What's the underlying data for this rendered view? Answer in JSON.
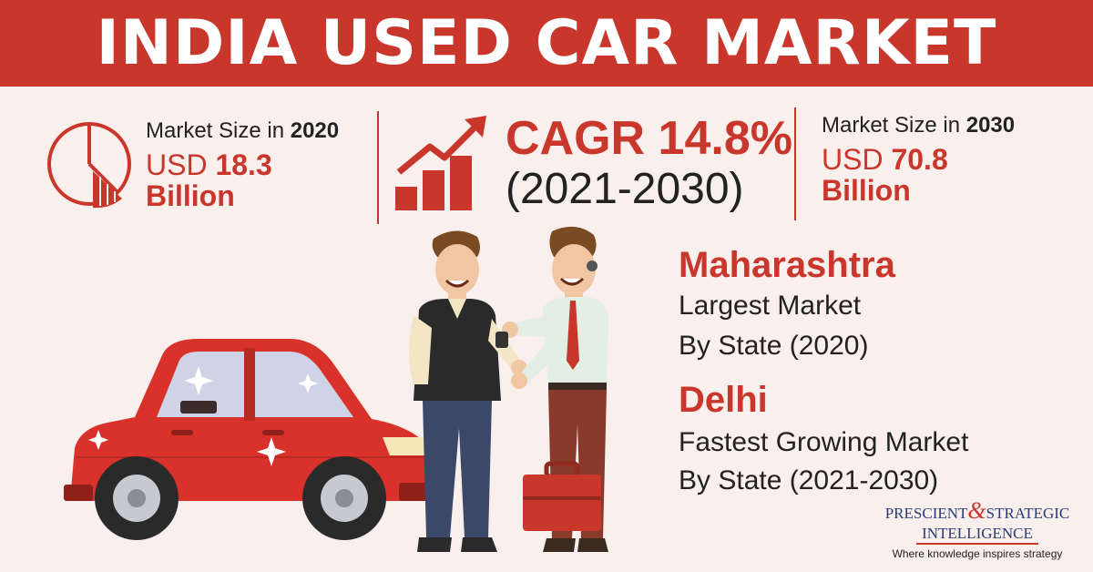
{
  "header": {
    "title": "INDIA USED CAR MARKET"
  },
  "stats": {
    "size_2020": {
      "label_prefix": "Market Size in ",
      "year": "2020",
      "value_prefix": "USD ",
      "value": "18.3",
      "unit": "Billion"
    },
    "cagr": {
      "title": "CAGR 14.8%",
      "period": "(2021-2030)"
    },
    "size_2030": {
      "label_prefix": "Market Size in ",
      "year": "2030",
      "value_prefix": "USD ",
      "value": "70.8",
      "unit": "Billion"
    }
  },
  "states": {
    "largest": {
      "name": "Maharashtra",
      "line1": "Largest Market",
      "line2": "By State (2020)"
    },
    "fastest": {
      "name": "Delhi",
      "line1": "Fastest Growing Market",
      "line2": "By State (2021-2030)"
    }
  },
  "logo": {
    "line1_left": "PRESCIENT",
    "amp": "&",
    "line1_right": "STRATEGIC",
    "line2": "INTELLIGENCE",
    "tagline": "Where knowledge inspires strategy"
  },
  "colors": {
    "accent": "#c9372c",
    "background": "#f9efec",
    "text": "#222222",
    "logo_blue": "#2a3c7a"
  },
  "icons": [
    "pie-chart-icon",
    "growth-chart-icon",
    "car-illustration",
    "seller-illustration",
    "buyer-illustration",
    "briefcase-illustration"
  ]
}
